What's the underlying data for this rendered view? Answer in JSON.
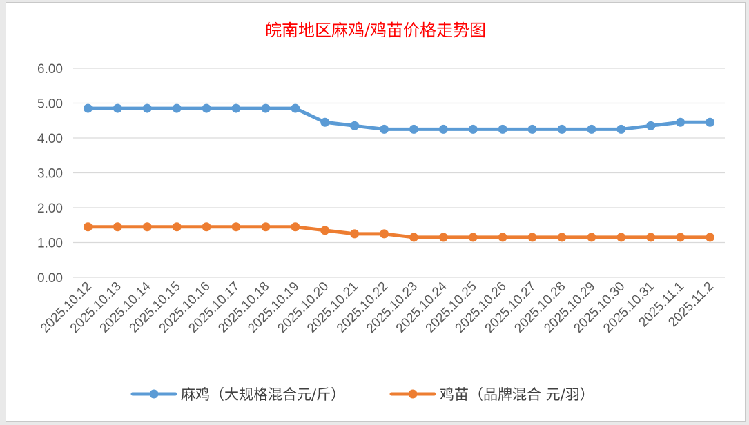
{
  "chart_data": {
    "type": "line",
    "title": "皖南地区麻鸡/鸡苗价格走势图",
    "xlabel": "",
    "ylabel": "",
    "ylim": [
      0,
      6
    ],
    "yticks": [
      "0.00",
      "1.00",
      "2.00",
      "3.00",
      "4.00",
      "5.00",
      "6.00"
    ],
    "grid": true,
    "legend_position": "bottom",
    "categories": [
      "2025.10.12",
      "2025.10.13",
      "2025.10.14",
      "2025.10.15",
      "2025.10.16",
      "2025.10.17",
      "2025.10.18",
      "2025.10.19",
      "2025.10.20",
      "2025.10.21",
      "2025.10.22",
      "2025.10.23",
      "2025.10.24",
      "2025.10.25",
      "2025.10.26",
      "2025.10.27",
      "2025.10.28",
      "2025.10.29",
      "2025.10.30",
      "2025.10.31",
      "2025.11.1",
      "2025.11.2"
    ],
    "series": [
      {
        "name": "麻鸡（大规格混合元/斤）",
        "color": "#5b9bd5",
        "values": [
          4.85,
          4.85,
          4.85,
          4.85,
          4.85,
          4.85,
          4.85,
          4.85,
          4.45,
          4.35,
          4.25,
          4.25,
          4.25,
          4.25,
          4.25,
          4.25,
          4.25,
          4.25,
          4.25,
          4.35,
          4.45,
          4.45
        ]
      },
      {
        "name": "鸡苗（品牌混合 元/羽）",
        "color": "#ed7d31",
        "values": [
          1.45,
          1.45,
          1.45,
          1.45,
          1.45,
          1.45,
          1.45,
          1.45,
          1.35,
          1.25,
          1.25,
          1.15,
          1.15,
          1.15,
          1.15,
          1.15,
          1.15,
          1.15,
          1.15,
          1.15,
          1.15,
          1.15
        ]
      }
    ]
  }
}
